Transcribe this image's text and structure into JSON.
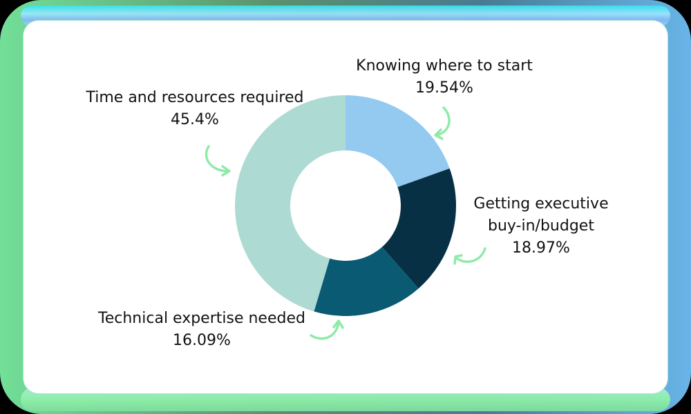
{
  "chart_data": {
    "type": "pie",
    "variant": "donut",
    "title": "",
    "categories": [
      "Knowing where to start",
      "Getting executive buy-in/budget",
      "Technical expertise needed",
      "Time and resources required"
    ],
    "values": [
      19.54,
      18.97,
      16.09,
      45.4
    ],
    "colors": [
      "#94CAF0",
      "#073045",
      "#0B5A73",
      "#AEDAD4"
    ],
    "value_suffix": "%",
    "legend": "none (callout labels with arrows)"
  },
  "labels": {
    "knowing": {
      "name": "Knowing where to start",
      "value": "19.54%"
    },
    "executive": {
      "line1": "Getting executive",
      "line2": "buy-in/budget",
      "value": "18.97%"
    },
    "technical": {
      "name": "Technical expertise needed",
      "value": "16.09%"
    },
    "time": {
      "name": "Time and resources required",
      "value": "45.4%"
    }
  },
  "colors": {
    "arrow": "#8EEBA8",
    "card_bg": "#FFFFFF",
    "text": "#111111"
  }
}
